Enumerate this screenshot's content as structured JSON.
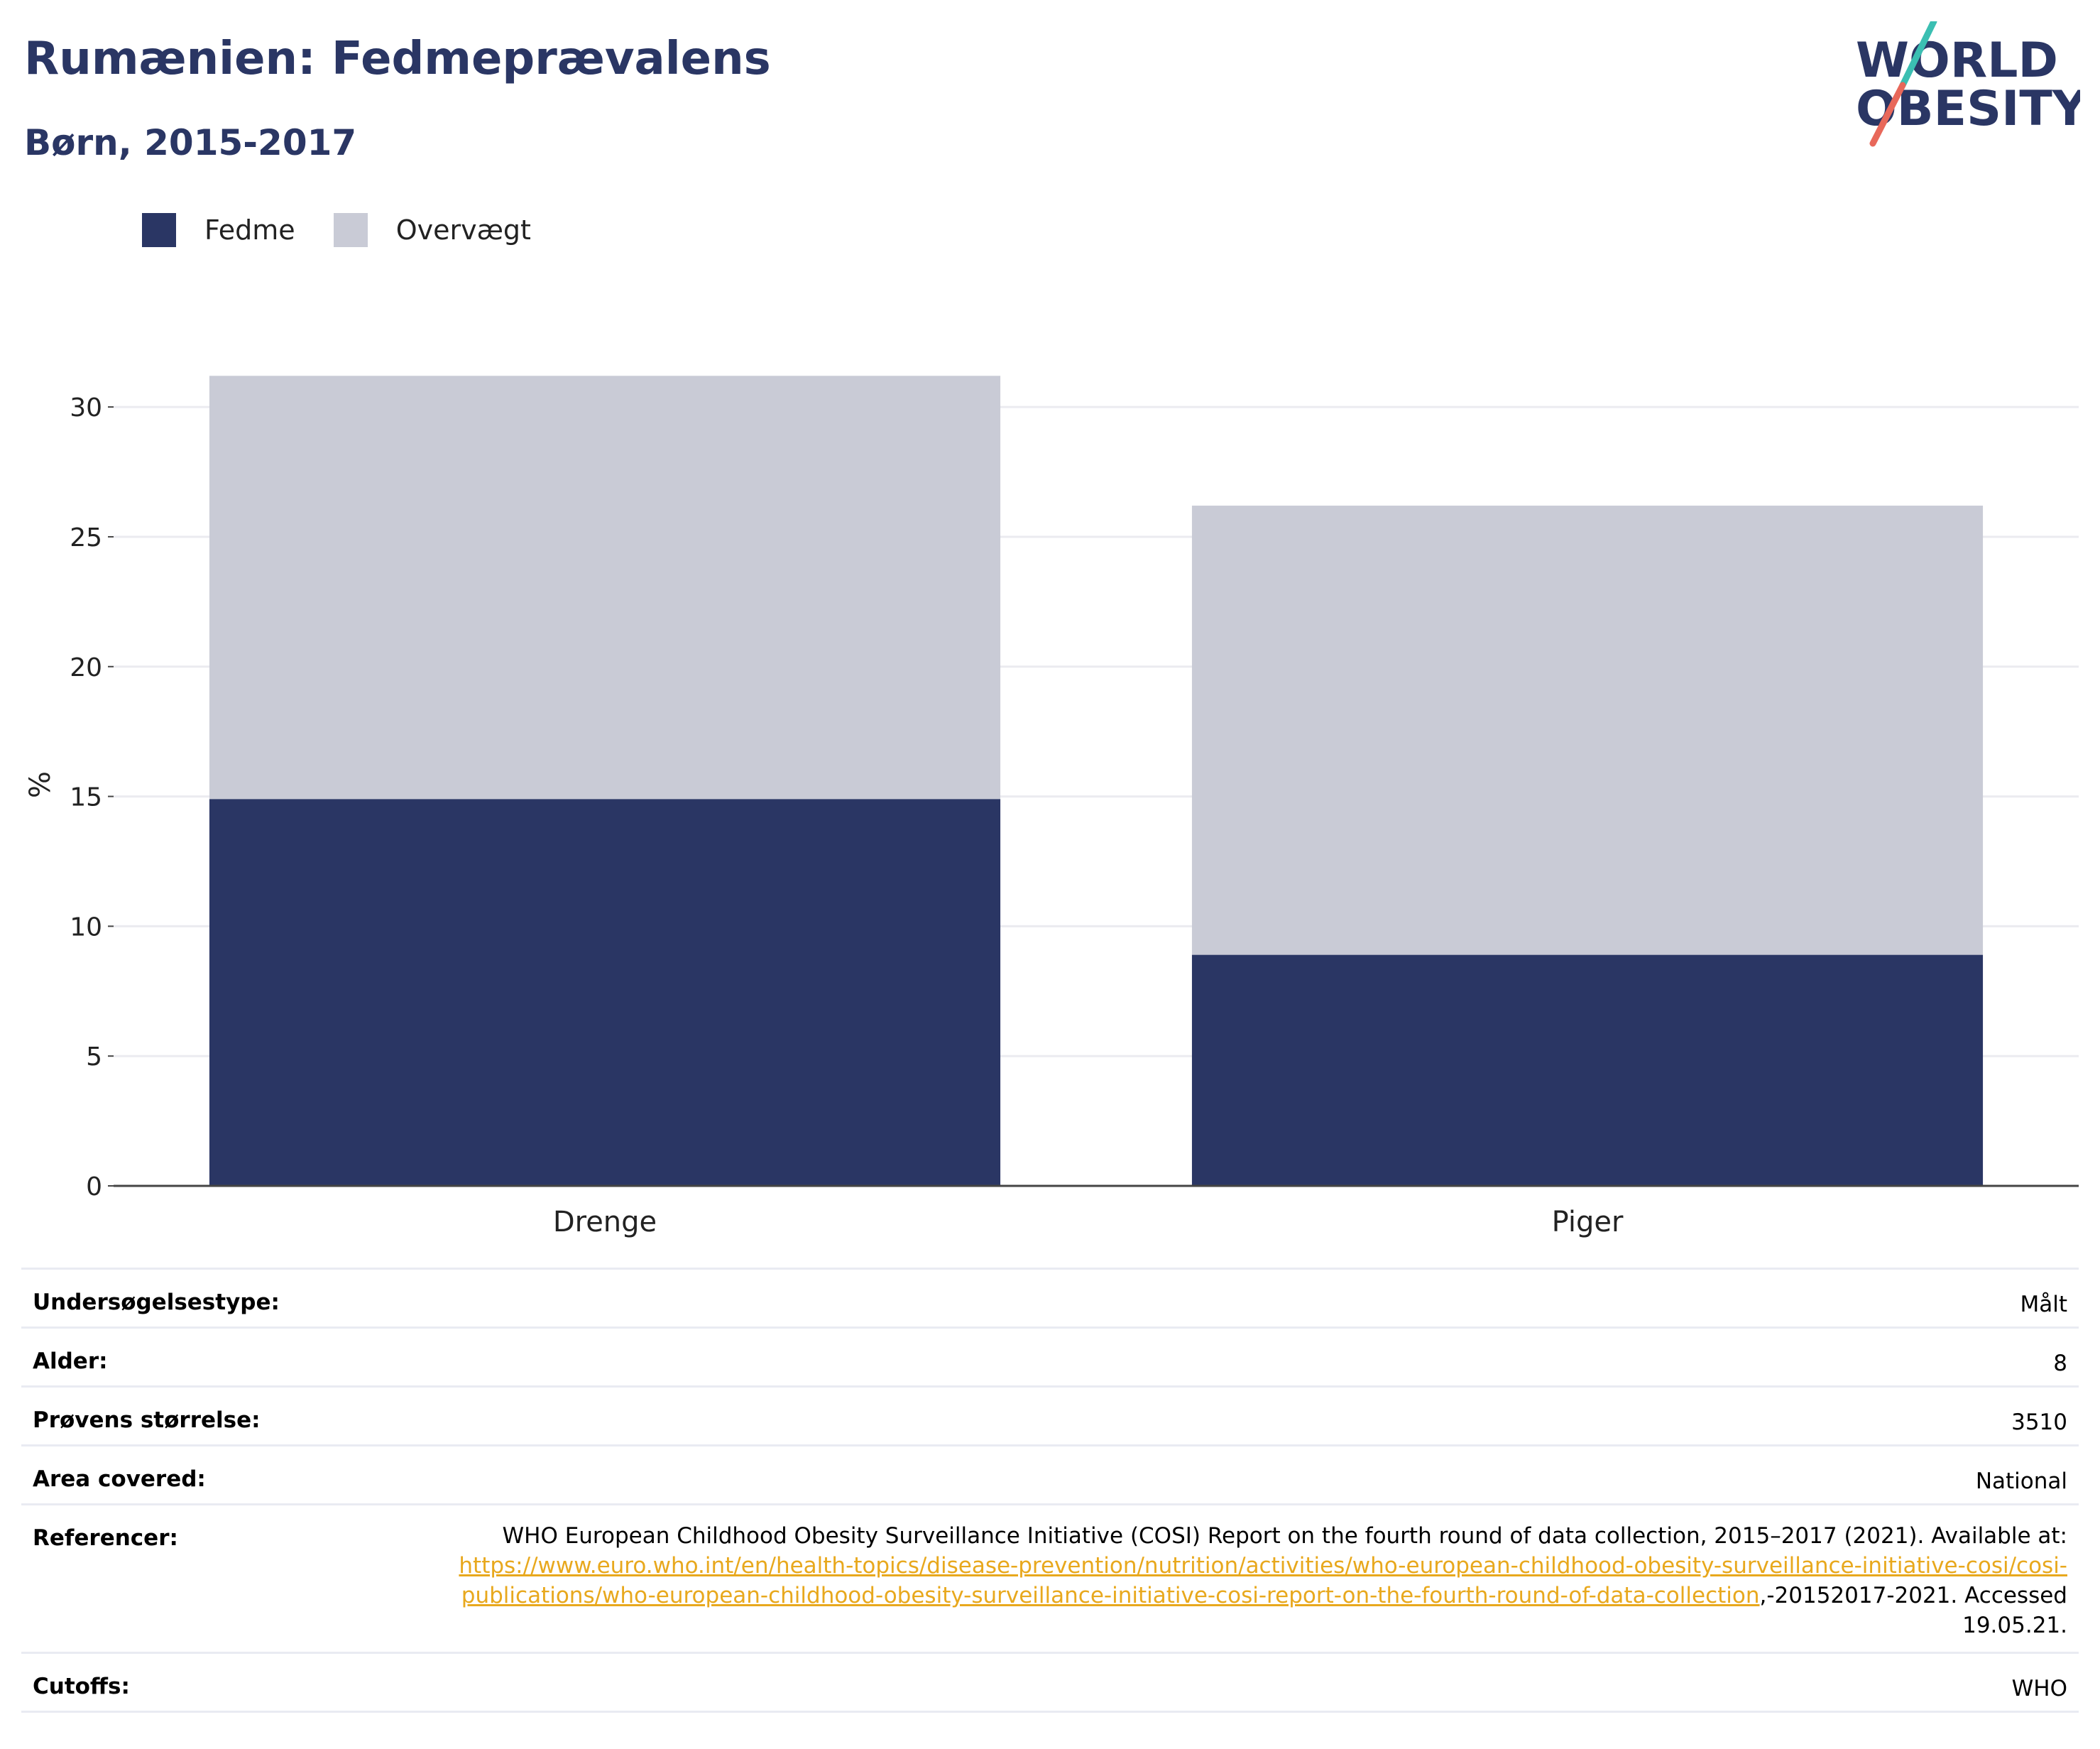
{
  "header": {
    "title": "Rumænien: Fedmeprævalens",
    "subtitle": "Børn, 2015-2017"
  },
  "logo": {
    "line1": "WORLD",
    "line2": "OBESITY",
    "colors": {
      "text": "#2a3664",
      "slash_top": "#3bbfb2",
      "slash_bottom": "#e8685a"
    }
  },
  "legend": {
    "items": [
      {
        "label": "Fedme",
        "color": "#2a3664"
      },
      {
        "label": "Overvægt",
        "color": "#c9cbd6"
      }
    ]
  },
  "chart_data": {
    "type": "bar",
    "stacked": true,
    "categories": [
      "Drenge",
      "Piger"
    ],
    "series": [
      {
        "name": "Fedme",
        "values": [
          14.9,
          8.9
        ],
        "color": "#2a3664"
      },
      {
        "name": "Overvægt",
        "values": [
          16.3,
          17.3
        ],
        "color": "#c9cbd6"
      }
    ],
    "ylabel": "%",
    "ylim": [
      0,
      32
    ],
    "yticks": [
      0,
      5,
      10,
      15,
      20,
      25,
      30
    ],
    "grid": true,
    "legend_position": "top-left"
  },
  "info": {
    "survey_type": {
      "label": "Undersøgelsestype:",
      "value": "Målt"
    },
    "age": {
      "label": "Alder:",
      "value": "8"
    },
    "sample_size": {
      "label": "Prøvens størrelse:",
      "value": "3510"
    },
    "area": {
      "label": "Area covered:",
      "value": "National"
    },
    "references": {
      "label": "Referencer:",
      "text_before": "WHO European Childhood Obesity Surveillance Initiative (COSI) Report on the fourth round of data collection, 2015–2017 (2021). Available at: ",
      "link": "https://www.euro.who.int/en/health-topics/disease-prevention/nutrition/activities/who-european-childhood-obesity-surveillance-initiative-cosi/cosi-publications/who-european-childhood-obesity-surveillance-initiative-cosi-report-on-the-fourth-round-of-data-collection",
      "text_after": ",-20152017-2021. Accessed 19.05.21."
    },
    "cutoffs": {
      "label": "Cutoffs:",
      "value": "WHO"
    }
  }
}
